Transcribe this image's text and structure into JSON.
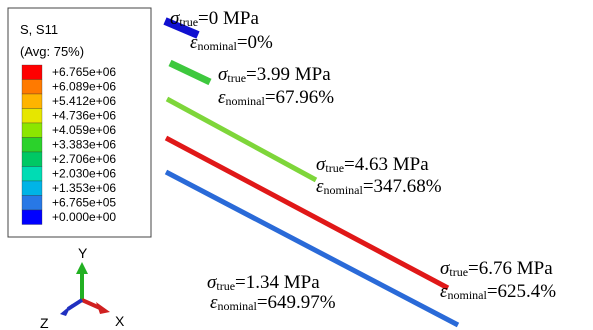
{
  "legend": {
    "title": "S, S11",
    "subtitle": "(Avg: 75%)",
    "labels": [
      "+6.765e+06",
      "+6.089e+06",
      "+5.412e+06",
      "+4.736e+06",
      "+4.059e+06",
      "+3.383e+06",
      "+2.706e+06",
      "+2.030e+06",
      "+1.353e+06",
      "+6.765e+05",
      "+0.000e+00"
    ],
    "colors": [
      "#ff0000",
      "#ff7a00",
      "#ffb400",
      "#e6e600",
      "#8ce600",
      "#2bd22b",
      "#00c864",
      "#00dcb4",
      "#00b4e6",
      "#2878e6",
      "#0000ff"
    ]
  },
  "annotations": [
    {
      "sigma": "σ",
      "sigma_sub": "true",
      "sigma_value": "=0  MPa",
      "eps": "ε",
      "eps_sub": "nominal",
      "eps_value": "=0%"
    },
    {
      "sigma": "σ",
      "sigma_sub": "true",
      "sigma_value": "=3.99 MPa",
      "eps": "ε",
      "eps_sub": "nominal",
      "eps_value": "=67.96%"
    },
    {
      "sigma": "σ",
      "sigma_sub": "true",
      "sigma_value": "=4.63 MPa",
      "eps": "ε",
      "eps_sub": "nominal",
      "eps_value": "=347.68%"
    },
    {
      "sigma": "σ",
      "sigma_sub": "true",
      "sigma_value": "=6.76 MPa",
      "eps": "ε",
      "eps_sub": "nominal",
      "eps_value": "=625.4%"
    },
    {
      "sigma": "σ",
      "sigma_sub": "true",
      "sigma_value": "=1.34 MPa",
      "eps": "ε",
      "eps_sub": "nominal",
      "eps_value": "=649.97%"
    }
  ],
  "triad": {
    "y": "Y",
    "x": "X",
    "z": "Z"
  }
}
